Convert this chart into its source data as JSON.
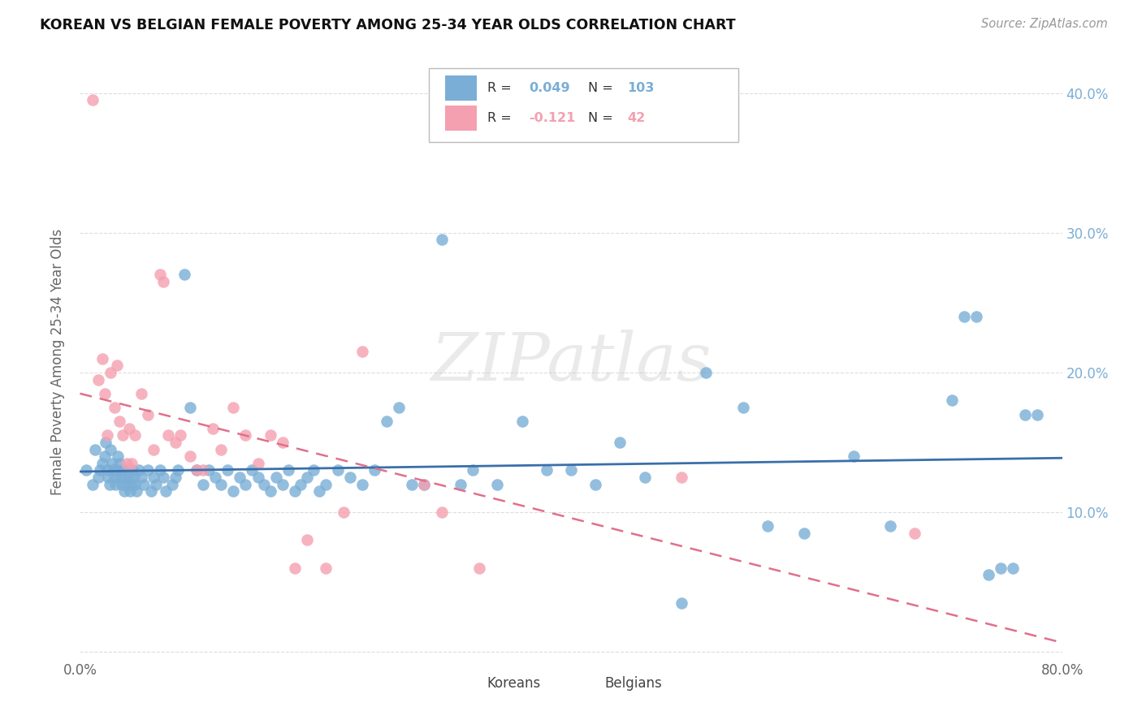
{
  "title": "KOREAN VS BELGIAN FEMALE POVERTY AMONG 25-34 YEAR OLDS CORRELATION CHART",
  "source": "Source: ZipAtlas.com",
  "ylabel": "Female Poverty Among 25-34 Year Olds",
  "xlim": [
    0.0,
    0.8
  ],
  "ylim": [
    -0.005,
    0.42
  ],
  "xticks": [
    0.0,
    0.1,
    0.2,
    0.3,
    0.4,
    0.5,
    0.6,
    0.7,
    0.8
  ],
  "yticks": [
    0.0,
    0.1,
    0.2,
    0.3,
    0.4
  ],
  "yticklabels_right": [
    "",
    "10.0%",
    "20.0%",
    "30.0%",
    "40.0%"
  ],
  "korean_color": "#7aaed6",
  "belgian_color": "#f4a0b0",
  "korean_line_color": "#3a6faa",
  "belgian_line_color": "#e0708a",
  "korean_R": 0.049,
  "korean_N": 103,
  "belgian_R": -0.121,
  "belgian_N": 42,
  "watermark": "ZIPatlas",
  "legend_korean_label": "Koreans",
  "legend_belgian_label": "Belgians",
  "korean_x": [
    0.005,
    0.01,
    0.012,
    0.015,
    0.016,
    0.018,
    0.02,
    0.021,
    0.022,
    0.023,
    0.024,
    0.025,
    0.026,
    0.027,
    0.028,
    0.029,
    0.03,
    0.031,
    0.032,
    0.033,
    0.034,
    0.035,
    0.036,
    0.037,
    0.038,
    0.039,
    0.04,
    0.041,
    0.042,
    0.043,
    0.044,
    0.045,
    0.046,
    0.048,
    0.05,
    0.052,
    0.055,
    0.058,
    0.06,
    0.062,
    0.065,
    0.068,
    0.07,
    0.075,
    0.078,
    0.08,
    0.085,
    0.09,
    0.095,
    0.1,
    0.105,
    0.11,
    0.115,
    0.12,
    0.125,
    0.13,
    0.135,
    0.14,
    0.145,
    0.15,
    0.155,
    0.16,
    0.165,
    0.17,
    0.175,
    0.18,
    0.185,
    0.19,
    0.195,
    0.2,
    0.21,
    0.22,
    0.23,
    0.24,
    0.25,
    0.26,
    0.27,
    0.28,
    0.295,
    0.31,
    0.32,
    0.34,
    0.36,
    0.38,
    0.4,
    0.42,
    0.44,
    0.46,
    0.49,
    0.51,
    0.54,
    0.56,
    0.59,
    0.63,
    0.66,
    0.71,
    0.72,
    0.73,
    0.74,
    0.75,
    0.76,
    0.77,
    0.78
  ],
  "korean_y": [
    0.13,
    0.12,
    0.145,
    0.125,
    0.13,
    0.135,
    0.14,
    0.15,
    0.13,
    0.125,
    0.12,
    0.145,
    0.135,
    0.13,
    0.125,
    0.12,
    0.13,
    0.14,
    0.135,
    0.125,
    0.12,
    0.13,
    0.115,
    0.125,
    0.12,
    0.13,
    0.125,
    0.115,
    0.12,
    0.13,
    0.125,
    0.12,
    0.115,
    0.13,
    0.125,
    0.12,
    0.13,
    0.115,
    0.125,
    0.12,
    0.13,
    0.125,
    0.115,
    0.12,
    0.125,
    0.13,
    0.27,
    0.175,
    0.13,
    0.12,
    0.13,
    0.125,
    0.12,
    0.13,
    0.115,
    0.125,
    0.12,
    0.13,
    0.125,
    0.12,
    0.115,
    0.125,
    0.12,
    0.13,
    0.115,
    0.12,
    0.125,
    0.13,
    0.115,
    0.12,
    0.13,
    0.125,
    0.12,
    0.13,
    0.165,
    0.175,
    0.12,
    0.12,
    0.295,
    0.12,
    0.13,
    0.12,
    0.165,
    0.13,
    0.13,
    0.12,
    0.15,
    0.125,
    0.035,
    0.2,
    0.175,
    0.09,
    0.085,
    0.14,
    0.09,
    0.18,
    0.24,
    0.24,
    0.055,
    0.06,
    0.06,
    0.17,
    0.17
  ],
  "belgian_x": [
    0.01,
    0.015,
    0.018,
    0.02,
    0.022,
    0.025,
    0.028,
    0.03,
    0.032,
    0.035,
    0.038,
    0.04,
    0.042,
    0.045,
    0.05,
    0.055,
    0.06,
    0.065,
    0.068,
    0.072,
    0.078,
    0.082,
    0.09,
    0.095,
    0.1,
    0.108,
    0.115,
    0.125,
    0.135,
    0.145,
    0.155,
    0.165,
    0.175,
    0.185,
    0.2,
    0.215,
    0.23,
    0.28,
    0.295,
    0.325,
    0.49,
    0.68
  ],
  "belgian_y": [
    0.395,
    0.195,
    0.21,
    0.185,
    0.155,
    0.2,
    0.175,
    0.205,
    0.165,
    0.155,
    0.135,
    0.16,
    0.135,
    0.155,
    0.185,
    0.17,
    0.145,
    0.27,
    0.265,
    0.155,
    0.15,
    0.155,
    0.14,
    0.13,
    0.13,
    0.16,
    0.145,
    0.175,
    0.155,
    0.135,
    0.155,
    0.15,
    0.06,
    0.08,
    0.06,
    0.1,
    0.215,
    0.12,
    0.1,
    0.06,
    0.125,
    0.085
  ]
}
